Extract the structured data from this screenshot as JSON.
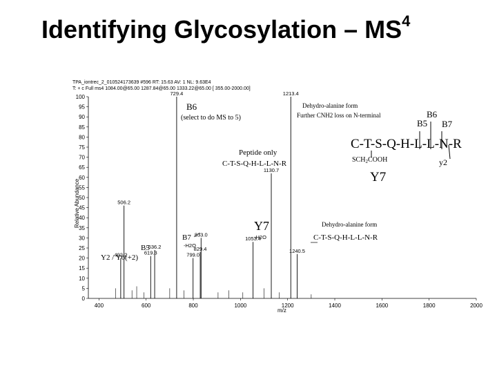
{
  "slide": {
    "title": "Identifying Glycosylation – MS",
    "title_superscript": "4"
  },
  "spectrum_header": {
    "line1": "TPA_iontrec_2_010524173639          #596   RT: 15.63   AV: 1   NL: 9.63E4",
    "line2": "T: + c Full ms4 1084.00@65.00 1287.84@65.00 1333.22@65.00 [ 355.00-2000.00]"
  },
  "chart_data": {
    "type": "bar",
    "xlabel": "m/z",
    "ylabel": "Relative Abundance",
    "xlim": [
      355,
      2000
    ],
    "ylim": [
      0,
      100
    ],
    "xticks": [
      400,
      600,
      800,
      1000,
      1200,
      1400,
      1600,
      1800,
      2000
    ],
    "yticks": [
      0,
      5,
      10,
      15,
      20,
      25,
      30,
      35,
      40,
      45,
      50,
      55,
      60,
      65,
      70,
      75,
      80,
      85,
      90,
      95,
      100
    ],
    "peaks": [
      {
        "mz": 492.2,
        "intensity": 20,
        "label": "492.2"
      },
      {
        "mz": 506.2,
        "intensity": 46,
        "label": "506.2"
      },
      {
        "mz": 619.3,
        "intensity": 21,
        "label": "619.3"
      },
      {
        "mz": 636.2,
        "intensity": 24,
        "label": "636.2"
      },
      {
        "mz": 729.4,
        "intensity": 100,
        "label": "729.4"
      },
      {
        "mz": 799.0,
        "intensity": 20,
        "label": "799.0"
      },
      {
        "mz": 829.4,
        "intensity": 23,
        "label": "829.4"
      },
      {
        "mz": 833.0,
        "intensity": 30,
        "label": "833.0"
      },
      {
        "mz": 1053.4,
        "intensity": 28,
        "label": "1053.4"
      },
      {
        "mz": 1130.7,
        "intensity": 62,
        "label": "1130.7"
      },
      {
        "mz": 1213.4,
        "intensity": 100,
        "label": "1213.4"
      },
      {
        "mz": 1240.5,
        "intensity": 22,
        "label": "1240.5"
      }
    ],
    "minor_peaks": [
      {
        "mz": 470,
        "intensity": 5
      },
      {
        "mz": 540,
        "intensity": 4
      },
      {
        "mz": 560,
        "intensity": 6
      },
      {
        "mz": 590,
        "intensity": 3
      },
      {
        "mz": 700,
        "intensity": 5
      },
      {
        "mz": 760,
        "intensity": 4
      },
      {
        "mz": 905,
        "intensity": 3
      },
      {
        "mz": 950,
        "intensity": 4
      },
      {
        "mz": 1010,
        "intensity": 3
      },
      {
        "mz": 1100,
        "intensity": 5
      },
      {
        "mz": 1165,
        "intensity": 3
      },
      {
        "mz": 1300,
        "intensity": 2
      }
    ]
  },
  "annotations": {
    "b6": "B6",
    "select_note": "(select to do MS to 5)",
    "dehydro_line1": "Dehydro-alanine form",
    "dehydro_line2": "Further CNH2 loss on N-terminal",
    "peptide_only": "Peptide only",
    "peptide_seq": "C-T-S-Q-H-L-L-N-R",
    "y7_mid": "Y7",
    "dehydro_form": "Dehydro-alanine form",
    "dehydro_seq": "C-T-S-Q-H-L-L-N-R",
    "h2o_a": "-H2O",
    "h2o_b": "-H2O",
    "b7": "B7",
    "b5": "B5",
    "y2_y6": "Y2 / Y6(+2)"
  },
  "inset": {
    "b6": "B6",
    "b5": "B5",
    "b7": "B7",
    "sequence": "C-T-S-Q-H-L-L-N-R",
    "sch2": "SCH",
    "sch2_sub": "2",
    "sch2_tail": "COOH",
    "y2": "y2",
    "y7": "Y7"
  }
}
